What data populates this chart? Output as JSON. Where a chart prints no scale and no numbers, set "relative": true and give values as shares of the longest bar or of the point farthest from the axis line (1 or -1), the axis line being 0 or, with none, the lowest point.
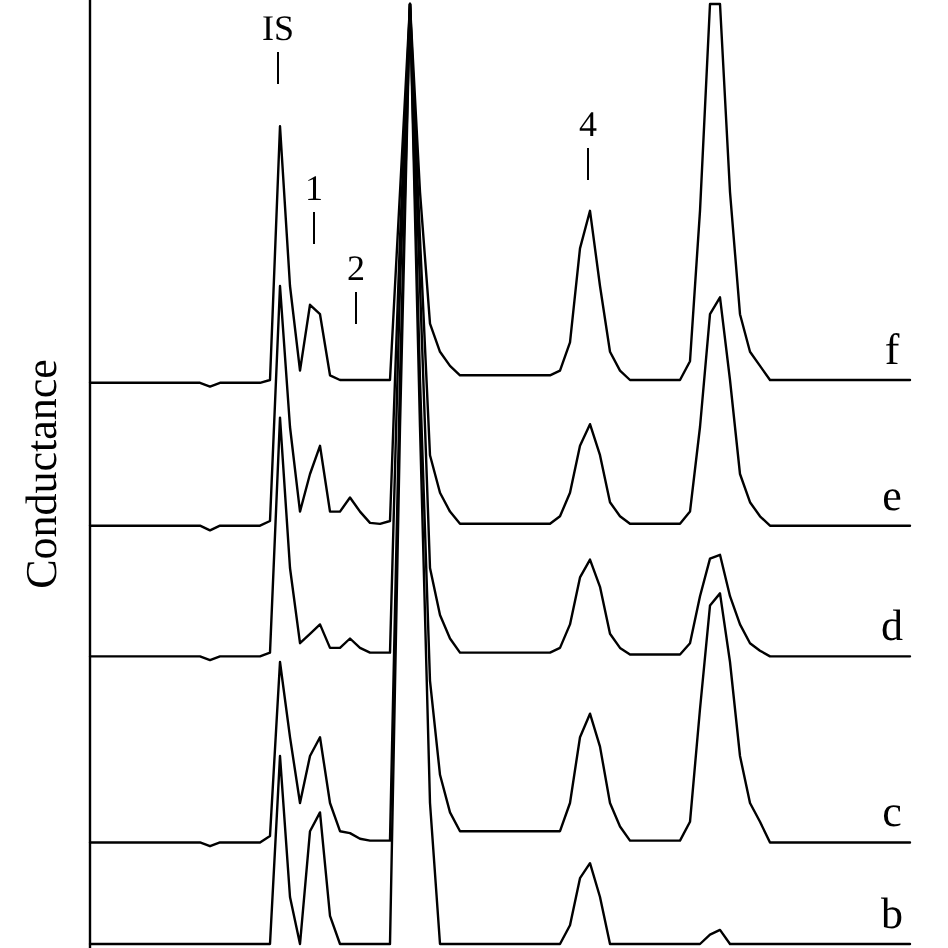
{
  "chart_data": {
    "type": "line",
    "ylabel": "Conductance",
    "relative": true,
    "categories": [
      null,
      null,
      null,
      null,
      null,
      null,
      null,
      null,
      null,
      null,
      null,
      null,
      null,
      null,
      null,
      null,
      null,
      null,
      null,
      null,
      null,
      null,
      null,
      null,
      null,
      null,
      null,
      null,
      null,
      null,
      null,
      null,
      null,
      null,
      null,
      null,
      null,
      null,
      null,
      null,
      null,
      null,
      null,
      null,
      null,
      null,
      null,
      null,
      null,
      null,
      null,
      null,
      null,
      null,
      null,
      null,
      null,
      null,
      null,
      null,
      null,
      null,
      null,
      null,
      null,
      null,
      null,
      null,
      null,
      null,
      null,
      null,
      null,
      null,
      null,
      null,
      null,
      null,
      null,
      null,
      null,
      null,
      null
    ],
    "series": [
      {
        "name": "f",
        "color": "#000000",
        "values": [
          0.597,
          0.597,
          0.597,
          0.597,
          0.597,
          0.597,
          0.597,
          0.597,
          0.597,
          0.597,
          0.597,
          0.597,
          0.593,
          0.597,
          0.597,
          0.597,
          0.597,
          0.597,
          0.6,
          0.87,
          0.7,
          0.61,
          0.68,
          0.67,
          0.605,
          0.6,
          0.6,
          0.6,
          0.6,
          0.6,
          0.6,
          0.8,
          1,
          0.8,
          0.66,
          0.63,
          0.615,
          0.605,
          0.605,
          0.605,
          0.605,
          0.605,
          0.605,
          0.605,
          0.605,
          0.605,
          0.605,
          0.61,
          0.64,
          0.74,
          0.78,
          0.7,
          0.63,
          0.61,
          0.6,
          0.6,
          0.6,
          0.6,
          0.6,
          0.6,
          0.62,
          0.78,
          1,
          1,
          0.8,
          0.67,
          0.63,
          0.615,
          0.6,
          0.6,
          0.6,
          0.6,
          0.6,
          0.6,
          0.6,
          0.6,
          0.6,
          0.6,
          0.6,
          0.6,
          0.6,
          0.6,
          0.6
        ]
      },
      {
        "name": "e",
        "color": "#000000",
        "values": [
          0.445,
          0.445,
          0.445,
          0.445,
          0.445,
          0.445,
          0.445,
          0.445,
          0.445,
          0.445,
          0.445,
          0.445,
          0.44,
          0.445,
          0.445,
          0.445,
          0.445,
          0.445,
          0.45,
          0.7,
          0.55,
          0.46,
          0.5,
          0.53,
          0.46,
          0.46,
          0.475,
          0.46,
          0.448,
          0.447,
          0.45,
          0.75,
          1,
          0.75,
          0.52,
          0.48,
          0.46,
          0.447,
          0.447,
          0.447,
          0.447,
          0.447,
          0.447,
          0.447,
          0.447,
          0.447,
          0.447,
          0.455,
          0.48,
          0.53,
          0.553,
          0.52,
          0.47,
          0.455,
          0.447,
          0.447,
          0.447,
          0.447,
          0.447,
          0.447,
          0.46,
          0.55,
          0.67,
          0.688,
          0.6,
          0.5,
          0.47,
          0.455,
          0.445,
          0.445,
          0.445,
          0.445,
          0.445,
          0.445,
          0.445,
          0.445,
          0.445,
          0.445,
          0.445,
          0.445,
          0.445,
          0.445,
          0.445
        ]
      },
      {
        "name": "d",
        "color": "#000000",
        "values": [
          0.306,
          0.306,
          0.306,
          0.306,
          0.306,
          0.306,
          0.306,
          0.306,
          0.306,
          0.306,
          0.306,
          0.306,
          0.302,
          0.306,
          0.306,
          0.306,
          0.306,
          0.306,
          0.31,
          0.56,
          0.4,
          0.32,
          0.33,
          0.34,
          0.315,
          0.315,
          0.325,
          0.315,
          0.31,
          0.31,
          0.31,
          0.7,
          1,
          0.7,
          0.4,
          0.35,
          0.325,
          0.31,
          0.31,
          0.31,
          0.31,
          0.31,
          0.31,
          0.31,
          0.31,
          0.31,
          0.31,
          0.315,
          0.34,
          0.39,
          0.409,
          0.38,
          0.33,
          0.315,
          0.308,
          0.308,
          0.308,
          0.308,
          0.308,
          0.308,
          0.32,
          0.37,
          0.41,
          0.414,
          0.37,
          0.34,
          0.32,
          0.312,
          0.306,
          0.306,
          0.306,
          0.306,
          0.306,
          0.306,
          0.306,
          0.306,
          0.306,
          0.306,
          0.306,
          0.306,
          0.306,
          0.306,
          0.306
        ]
      },
      {
        "name": "c",
        "color": "#000000",
        "values": [
          0.108,
          0.108,
          0.108,
          0.108,
          0.108,
          0.108,
          0.108,
          0.108,
          0.108,
          0.108,
          0.108,
          0.108,
          0.104,
          0.108,
          0.108,
          0.108,
          0.108,
          0.108,
          0.115,
          0.3,
          0.22,
          0.15,
          0.2,
          0.22,
          0.15,
          0.12,
          0.118,
          0.112,
          0.11,
          0.11,
          0.11,
          0.6,
          1,
          0.6,
          0.28,
          0.18,
          0.14,
          0.12,
          0.12,
          0.12,
          0.12,
          0.12,
          0.12,
          0.12,
          0.12,
          0.12,
          0.12,
          0.12,
          0.15,
          0.22,
          0.245,
          0.21,
          0.15,
          0.125,
          0.11,
          0.11,
          0.11,
          0.11,
          0.11,
          0.11,
          0.13,
          0.25,
          0.36,
          0.373,
          0.3,
          0.2,
          0.15,
          0.13,
          0.108,
          0.108,
          0.108,
          0.108,
          0.108,
          0.108,
          0.108,
          0.108,
          0.108,
          0.108,
          0.108,
          0.108,
          0.108,
          0.108,
          0.108
        ]
      },
      {
        "name": "b",
        "color": "#000000",
        "values": [
          0,
          0,
          0,
          0,
          0,
          0,
          0,
          0,
          0,
          0,
          0,
          0,
          0,
          0,
          0,
          0,
          0,
          0,
          0,
          0.2,
          0.05,
          0,
          0.12,
          0.14,
          0.03,
          0,
          0,
          0,
          0,
          0,
          0,
          0.55,
          1,
          0.55,
          0.15,
          0,
          0,
          0,
          0,
          0,
          0,
          0,
          0,
          0,
          0,
          0,
          0,
          0,
          0.02,
          0.07,
          0.086,
          0.05,
          0,
          0,
          0,
          0,
          0,
          0,
          0,
          0,
          0,
          0,
          0.01,
          0.015,
          0,
          0,
          0,
          0,
          0,
          0,
          0,
          0,
          0,
          0,
          0,
          0,
          0,
          0,
          0,
          0,
          0,
          0,
          0
        ]
      }
    ],
    "annotations": [
      "IS",
      "1",
      "2",
      "4"
    ]
  }
}
